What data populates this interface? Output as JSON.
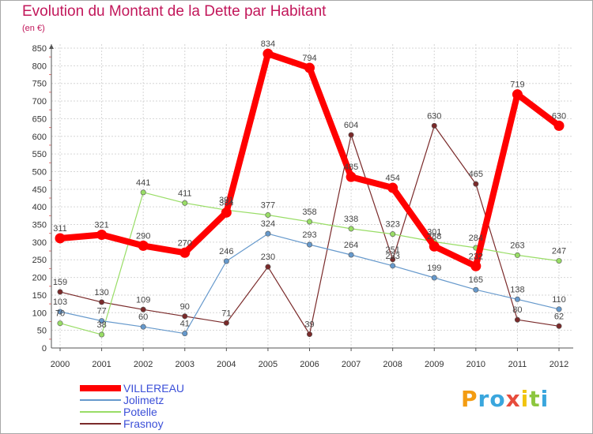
{
  "chart_data": {
    "type": "line",
    "title": "Evolution du Montant de la Dette par Habitant",
    "unit_label": "(en €)",
    "xlabel": "",
    "ylabel": "",
    "ylim": [
      0,
      850
    ],
    "ytick_step": 50,
    "grid": true,
    "categories": [
      "2000",
      "2001",
      "2002",
      "2003",
      "2004",
      "2005",
      "2006",
      "2007",
      "2008",
      "2009",
      "2010",
      "2011",
      "2012"
    ],
    "series": [
      {
        "name": "VILLEREAU",
        "color": "#ff0000",
        "values": [
          311,
          321,
          290,
          270,
          384,
          834,
          794,
          485,
          454,
          288,
          232,
          719,
          630
        ]
      },
      {
        "name": "Jolimetz",
        "color": "#6699cc",
        "values": [
          103,
          77,
          60,
          41,
          246,
          324,
          293,
          264,
          233,
          199,
          165,
          138,
          110
        ]
      },
      {
        "name": "Potelle",
        "color": "#99dd66",
        "values": [
          70,
          38,
          441,
          411,
          391,
          377,
          358,
          338,
          323,
          301,
          284,
          263,
          247
        ]
      },
      {
        "name": "Frasnoy",
        "color": "#7a2a2a",
        "values": [
          159,
          130,
          109,
          90,
          71,
          230,
          39,
          604,
          251,
          630,
          465,
          80,
          62
        ]
      }
    ],
    "legend_position": "bottom-left"
  },
  "brand": {
    "letters": [
      "P",
      "r",
      "o",
      "x",
      "i",
      "t",
      "i"
    ],
    "colors": [
      "#f39c12",
      "#3aa6dd",
      "#3aa6dd",
      "#e74c3c",
      "#f1c40f",
      "#8dc63f",
      "#3aa6dd"
    ]
  }
}
